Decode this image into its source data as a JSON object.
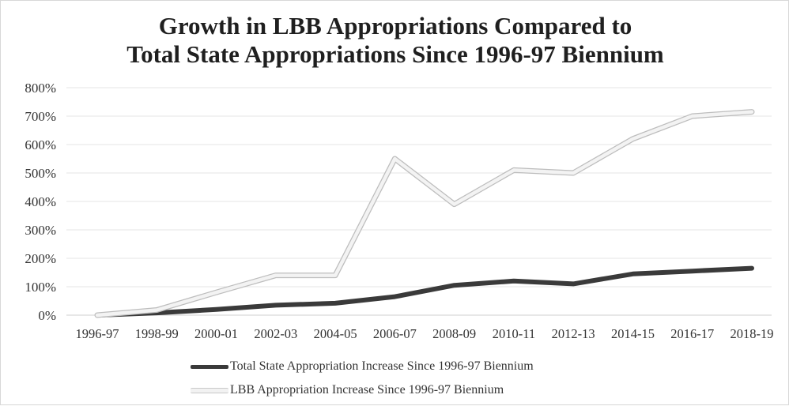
{
  "chart_data": {
    "type": "line",
    "title_lines": [
      "Growth in LBB Appropriations Compared to",
      "Total State Appropriations Since 1996-97 Biennium"
    ],
    "categories": [
      "1996-97",
      "1998-99",
      "2000-01",
      "2002-03",
      "2004-05",
      "2006-07",
      "2008-09",
      "2010-11",
      "2012-13",
      "2014-15",
      "2016-17",
      "2018-19"
    ],
    "y_ticks": [
      "0%",
      "100%",
      "200%",
      "300%",
      "400%",
      "500%",
      "600%",
      "700%",
      "800%"
    ],
    "ylim": [
      0,
      800
    ],
    "grid": true,
    "legend_position": "bottom",
    "series": [
      {
        "name": "Total State Appropriation Increase Since 1996-97 Biennium",
        "color": "#3a3a3a",
        "style": "dark",
        "values": [
          0,
          8,
          20,
          35,
          42,
          65,
          105,
          120,
          110,
          145,
          155,
          165
        ]
      },
      {
        "name": "LBB Appropriation Increase Since 1996-97 Biennium",
        "color": "#f3f3f3",
        "style": "light",
        "values": [
          0,
          18,
          80,
          140,
          140,
          550,
          390,
          510,
          500,
          620,
          700,
          715
        ]
      }
    ]
  }
}
